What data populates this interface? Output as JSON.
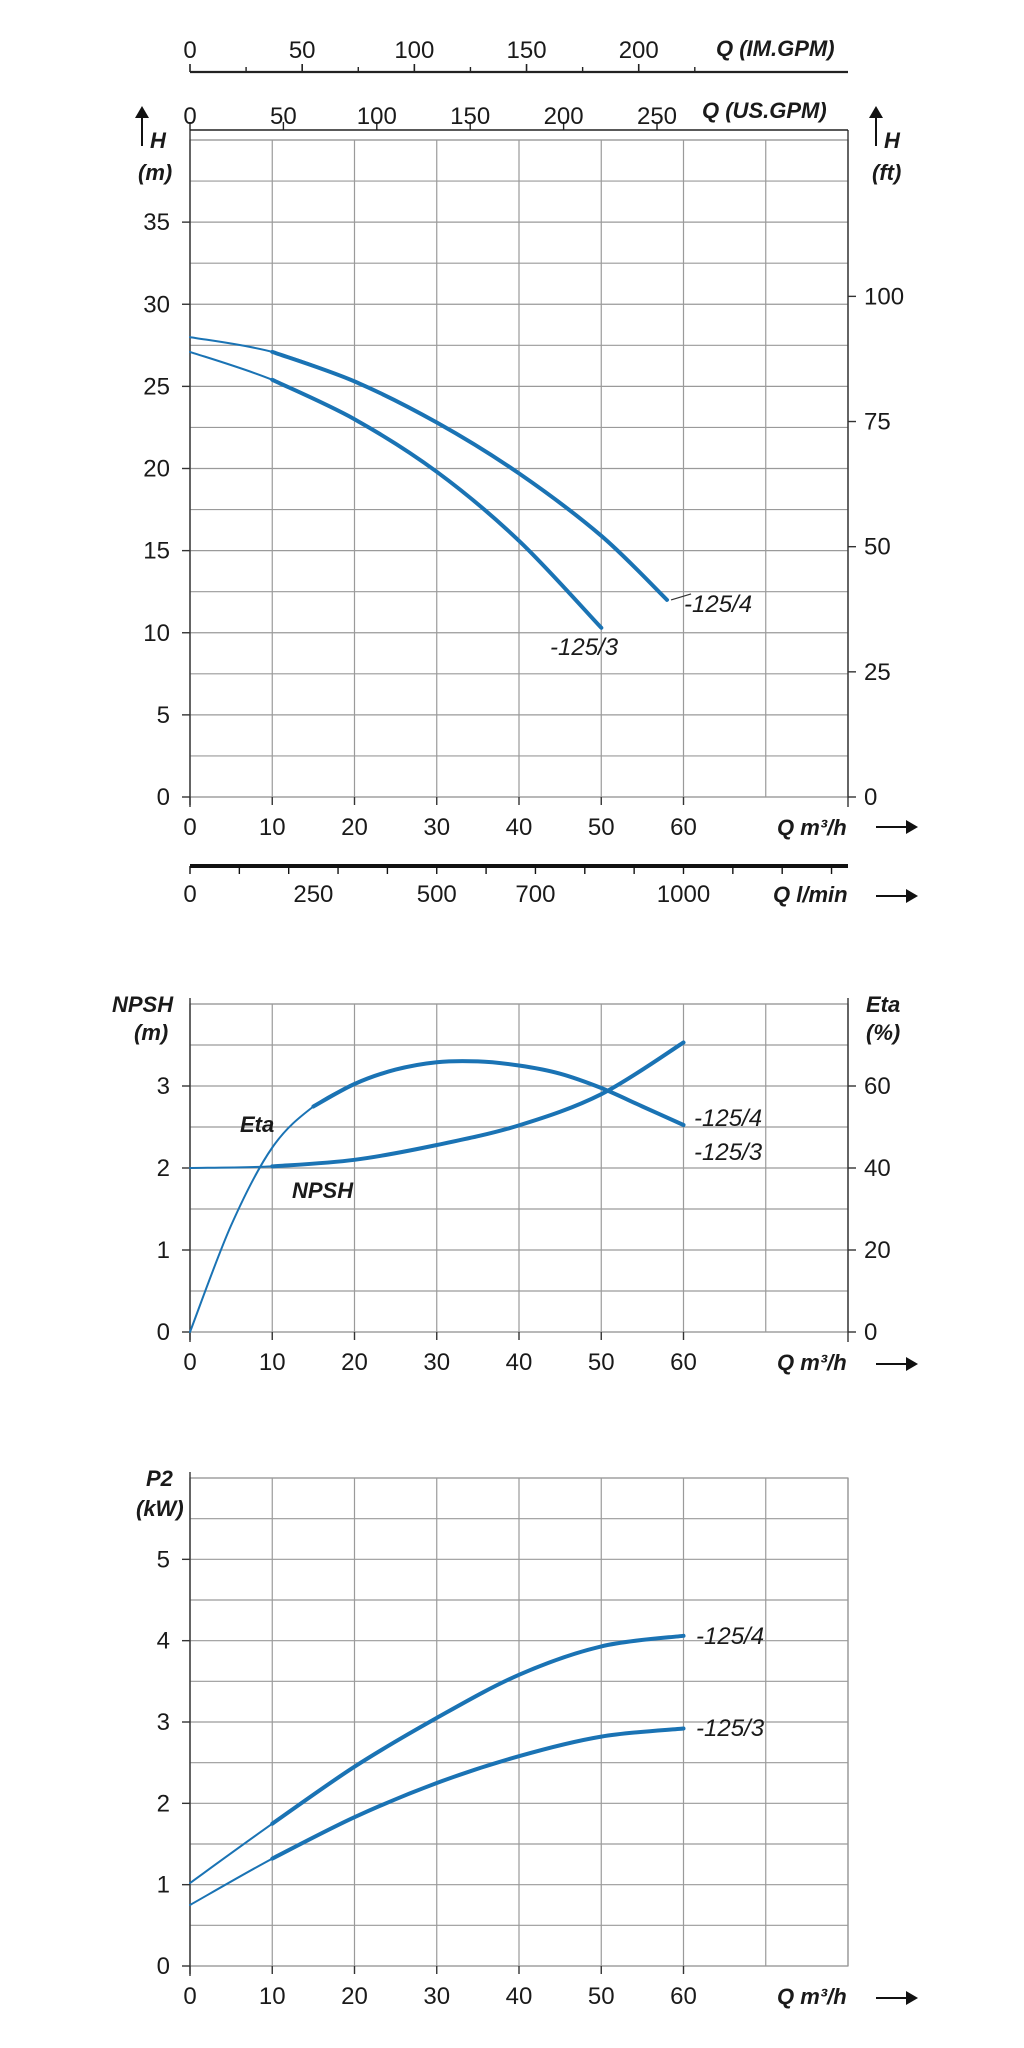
{
  "chart_data": [
    {
      "type": "line",
      "xlabel": "Q m³/h",
      "ylabel_left": "H (m)",
      "ylabel_right": "H (ft)",
      "xlim": [
        0,
        80
      ],
      "ylim": [
        0,
        40
      ],
      "y_ticks": [
        0,
        5,
        10,
        15,
        20,
        25,
        30,
        35
      ],
      "x_ticks": [
        0,
        10,
        20,
        30,
        40,
        50,
        60
      ],
      "secondary_y_ticks": [
        0,
        25,
        50,
        75,
        100
      ],
      "top_axes": [
        {
          "label": "Q (IM.GPM)",
          "ticks": [
            0,
            50,
            100,
            150,
            200
          ],
          "per_m3h": 3.666
        },
        {
          "label": "Q (US.GPM)",
          "ticks": [
            0,
            50,
            100,
            150,
            200,
            250
          ],
          "per_m3h": 4.403
        }
      ],
      "bottom_axis": {
        "label": "Q l/min",
        "ticks": [
          0,
          250,
          500,
          700,
          1000
        ],
        "per_m3h": 16.667
      },
      "series": [
        {
          "name": "-125/4",
          "x": [
            0,
            10,
            20,
            30,
            40,
            50,
            58
          ],
          "y": [
            28,
            27.1,
            25.3,
            22.8,
            19.7,
            15.9,
            12
          ]
        },
        {
          "name": "-125/3",
          "x": [
            0,
            10,
            20,
            30,
            40,
            50
          ],
          "y": [
            27.1,
            25.4,
            23,
            19.8,
            15.6,
            10.3
          ]
        }
      ]
    },
    {
      "type": "line",
      "xlabel": "Q m³/h",
      "ylabel_left": "NPSH (m)",
      "ylabel_right": "Eta (%)",
      "xlim": [
        0,
        80
      ],
      "ylim": [
        0,
        4
      ],
      "y_ticks": [
        0,
        1,
        2,
        3
      ],
      "x_ticks": [
        0,
        10,
        20,
        30,
        40,
        50,
        60
      ],
      "secondary_y_ticks": [
        0,
        20,
        40,
        60
      ],
      "series": [
        {
          "name": "Eta",
          "unit": "%",
          "x": [
            0,
            5,
            10,
            15,
            20,
            25,
            30,
            35,
            40,
            45,
            50,
            55,
            60
          ],
          "y": [
            0,
            26,
            45,
            55,
            60.5,
            64,
            65.8,
            66,
            65,
            63,
            59.5,
            55,
            50.5
          ]
        },
        {
          "name": "NPSH",
          "unit": "m",
          "x": [
            0,
            10,
            20,
            30,
            40,
            50,
            60
          ],
          "y": [
            2,
            2.02,
            2.1,
            2.28,
            2.52,
            2.9,
            3.53
          ]
        }
      ],
      "series_labels": [
        "-125/4",
        "-125/3"
      ]
    },
    {
      "type": "line",
      "xlabel": "Q m³/h",
      "ylabel_left": "P2 (kW)",
      "xlim": [
        0,
        80
      ],
      "ylim": [
        0,
        6
      ],
      "y_ticks": [
        0,
        1,
        2,
        3,
        4,
        5
      ],
      "x_ticks": [
        0,
        10,
        20,
        30,
        40,
        50,
        60
      ],
      "series": [
        {
          "name": "-125/4",
          "x": [
            0,
            10,
            20,
            30,
            40,
            50,
            60
          ],
          "y": [
            1.02,
            1.75,
            2.45,
            3.05,
            3.58,
            3.93,
            4.06
          ]
        },
        {
          "name": "-125/3",
          "x": [
            0,
            10,
            20,
            30,
            40,
            50,
            60
          ],
          "y": [
            0.75,
            1.32,
            1.83,
            2.25,
            2.58,
            2.82,
            2.92
          ]
        }
      ]
    }
  ]
}
